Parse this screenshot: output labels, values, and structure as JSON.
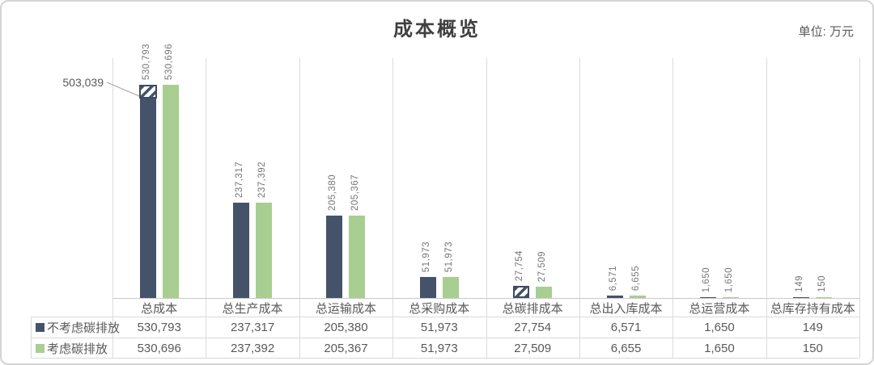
{
  "title": "成本概览",
  "unit_label": "单位: 万元",
  "callout": {
    "text": "503,039",
    "value": 503039
  },
  "chart_data": {
    "type": "bar",
    "title": "成本概览",
    "unit": "万元",
    "categories": [
      "总成本",
      "总生产成本",
      "总运输成本",
      "总采购成本",
      "总碳排成本",
      "总出入库成本",
      "总运营成本",
      "总库存持有成本"
    ],
    "series": [
      {
        "name": "不考虑碳排放",
        "color": "#44536a",
        "values": [
          530793,
          237317,
          205380,
          51973,
          27754,
          6571,
          1650,
          149
        ]
      },
      {
        "name": "考虑碳排放",
        "color": "#a8ce92",
        "values": [
          530696,
          237392,
          205367,
          51973,
          27509,
          6655,
          1650,
          150
        ]
      }
    ],
    "ylim": [
      0,
      535000
    ],
    "grid": "vertical-separators",
    "legend_position": "data-table-left",
    "data_table": true,
    "annotations": {
      "hatch_cap": {
        "series": 0,
        "category": 0,
        "solid_up_to": 503039
      },
      "hatch_full": {
        "series": 0,
        "category": 4
      }
    },
    "colors": {
      "grid_line": "#d9d9d9",
      "label_text": "#757575",
      "table_text": "#595959"
    }
  }
}
